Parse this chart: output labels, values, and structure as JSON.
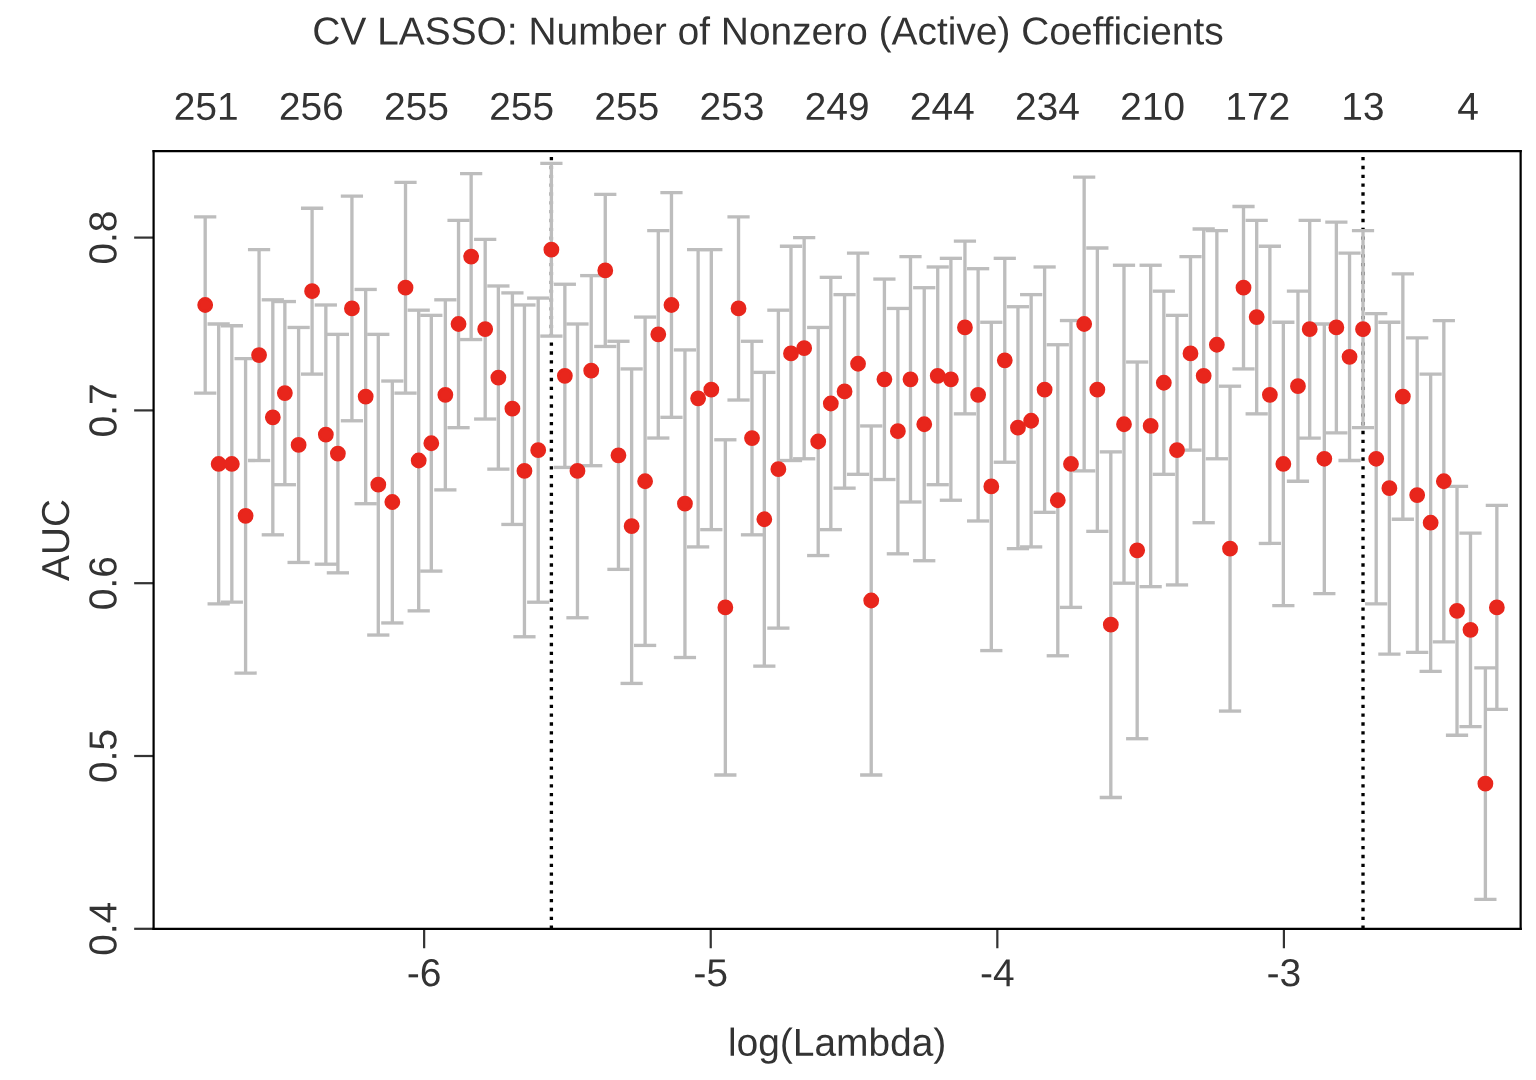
{
  "chart_data": {
    "type": "scatter",
    "title": "CV LASSO: Number of Nonzero (Active) Coefficients",
    "xlabel": "log(Lambda)",
    "ylabel": "AUC",
    "x": [
      -6.764,
      -6.717,
      -6.671,
      -6.623,
      -6.576,
      -6.528,
      -6.486,
      -6.438,
      -6.391,
      -6.343,
      -6.301,
      -6.252,
      -6.204,
      -6.16,
      -6.111,
      -6.065,
      -6.019,
      -5.975,
      -5.926,
      -5.88,
      -5.836,
      -5.787,
      -5.741,
      -5.692,
      -5.65,
      -5.602,
      -5.556,
      -5.509,
      -5.465,
      -5.417,
      -5.368,
      -5.322,
      -5.276,
      -5.229,
      -5.183,
      -5.137,
      -5.09,
      -5.044,
      -4.998,
      -4.949,
      -4.903,
      -4.856,
      -4.813,
      -4.764,
      -4.72,
      -4.674,
      -4.625,
      -4.581,
      -4.533,
      -4.486,
      -4.44,
      -4.394,
      -4.347,
      -4.303,
      -4.255,
      -4.208,
      -4.162,
      -4.113,
      -4.067,
      -4.021,
      -3.974,
      -3.928,
      -3.882,
      -3.835,
      -3.789,
      -3.743,
      -3.697,
      -3.651,
      -3.604,
      -3.558,
      -3.512,
      -3.465,
      -3.419,
      -3.373,
      -3.326,
      -3.28,
      -3.234,
      -3.188,
      -3.141,
      -3.095,
      -3.049,
      -3.002,
      -2.951,
      -2.91,
      -2.859,
      -2.817,
      -2.771,
      -2.724,
      -2.678,
      -2.632,
      -2.585,
      -2.535,
      -2.488,
      -2.442,
      -2.396,
      -2.349,
      -2.297,
      -2.257
    ],
    "series": [
      {
        "color": "#e8261c",
        "values": [
          0.761,
          0.669,
          0.669,
          0.639,
          0.732,
          0.696,
          0.71,
          0.68,
          0.769,
          0.686,
          0.675,
          0.759,
          0.708,
          0.657,
          0.647,
          0.771,
          0.671,
          0.681,
          0.709,
          0.75,
          0.789,
          0.747,
          0.719,
          0.701,
          0.665,
          0.677,
          0.793,
          0.72,
          0.665,
          0.723,
          0.781,
          0.674,
          0.633,
          0.659,
          0.744,
          0.761,
          0.646,
          0.707,
          0.712,
          0.586,
          0.759,
          0.684,
          0.637,
          0.666,
          0.733,
          0.736,
          0.682,
          0.704,
          0.711,
          0.727,
          0.59,
          0.718,
          0.688,
          0.718,
          0.692,
          0.72,
          0.718,
          0.748,
          0.709,
          0.656,
          0.729,
          0.69,
          0.694,
          0.712,
          0.648,
          0.669,
          0.75,
          0.712,
          0.576,
          0.692,
          0.619,
          0.691,
          0.716,
          0.677,
          0.733,
          0.72,
          0.738,
          0.62,
          0.771,
          0.754,
          0.709,
          0.669,
          0.714,
          0.747,
          0.672,
          0.748,
          0.731,
          0.747,
          0.672,
          0.655,
          0.708,
          0.651,
          0.635,
          0.659,
          0.584,
          0.573,
          0.484,
          0.586
        ],
        "errors": [
          0.051,
          0.081,
          0.08,
          0.091,
          0.061,
          0.068,
          0.053,
          0.068,
          0.048,
          0.075,
          0.069,
          0.065,
          0.062,
          0.087,
          0.07,
          0.061,
          0.087,
          0.074,
          0.055,
          0.06,
          0.048,
          0.052,
          0.053,
          0.067,
          0.096,
          0.088,
          0.05,
          0.053,
          0.085,
          0.055,
          0.044,
          0.066,
          0.091,
          0.095,
          0.06,
          0.065,
          0.089,
          0.086,
          0.081,
          0.097,
          0.053,
          0.056,
          0.085,
          0.092,
          0.062,
          0.064,
          0.066,
          0.073,
          0.056,
          0.064,
          0.101,
          0.058,
          0.071,
          0.071,
          0.079,
          0.063,
          0.07,
          0.05,
          0.073,
          0.095,
          0.059,
          0.07,
          0.073,
          0.071,
          0.09,
          0.083,
          0.085,
          0.082,
          0.1,
          0.092,
          0.109,
          0.093,
          0.053,
          0.078,
          0.056,
          0.085,
          0.066,
          0.094,
          0.047,
          0.056,
          0.086,
          0.082,
          0.055,
          0.063,
          0.078,
          0.061,
          0.06,
          0.057,
          0.084,
          0.096,
          0.071,
          0.091,
          0.086,
          0.093,
          0.072,
          0.056,
          0.067,
          0.059
        ]
      }
    ],
    "marker": "circle",
    "grid": false,
    "xlim": [
      -6.944,
      -2.174
    ],
    "xticks": [
      -6,
      -5,
      -4,
      -3
    ],
    "ylim": [
      0.4,
      0.85
    ],
    "yticks": [
      0.4,
      0.5,
      0.6,
      0.7,
      0.8
    ],
    "annotations": [
      "251",
      "256",
      "255",
      "255",
      "255",
      "253",
      "249",
      "244",
      "234",
      "210",
      "172",
      "13",
      "4"
    ],
    "ref_lines": [
      {
        "axis": "x",
        "value": -5.556,
        "color": "#000000",
        "line_style": "dotted"
      },
      {
        "axis": "x",
        "value": -2.724,
        "color": "#000000",
        "line_style": "dotted"
      }
    ]
  }
}
